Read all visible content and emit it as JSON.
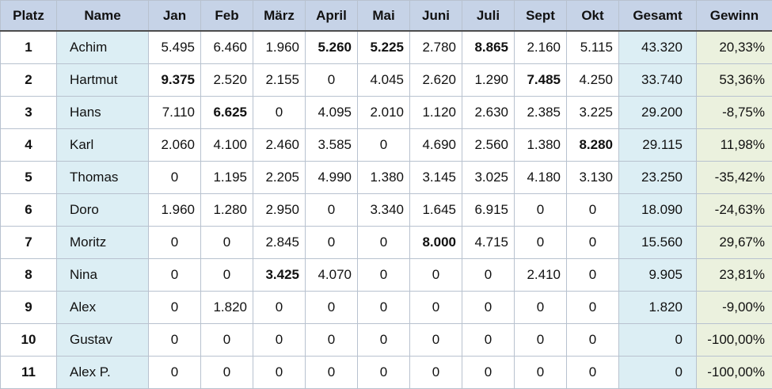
{
  "headers": [
    "Platz",
    "Name",
    "Jan",
    "Feb",
    "März",
    "April",
    "Mai",
    "Juni",
    "Juli",
    "Sept",
    "Okt",
    "Gesamt",
    "Gewinn"
  ],
  "rows": [
    {
      "platz": "1",
      "name": "Achim",
      "months": [
        "5.495",
        "6.460",
        "1.960",
        "5.260",
        "5.225",
        "2.780",
        "8.865",
        "2.160",
        "5.115"
      ],
      "bold": [
        3,
        4,
        6
      ],
      "gesamt": "43.320",
      "gewinn": "20,33%"
    },
    {
      "platz": "2",
      "name": "Hartmut",
      "months": [
        "9.375",
        "2.520",
        "2.155",
        "0",
        "4.045",
        "2.620",
        "1.290",
        "7.485",
        "4.250"
      ],
      "bold": [
        0,
        7
      ],
      "gesamt": "33.740",
      "gewinn": "53,36%"
    },
    {
      "platz": "3",
      "name": "Hans",
      "months": [
        "7.110",
        "6.625",
        "0",
        "4.095",
        "2.010",
        "1.120",
        "2.630",
        "2.385",
        "3.225"
      ],
      "bold": [
        1
      ],
      "gesamt": "29.200",
      "gewinn": "-8,75%"
    },
    {
      "platz": "4",
      "name": "Karl",
      "months": [
        "2.060",
        "4.100",
        "2.460",
        "3.585",
        "0",
        "4.690",
        "2.560",
        "1.380",
        "8.280"
      ],
      "bold": [
        8
      ],
      "gesamt": "29.115",
      "gewinn": "11,98%"
    },
    {
      "platz": "5",
      "name": "Thomas",
      "months": [
        "0",
        "1.195",
        "2.205",
        "4.990",
        "1.380",
        "3.145",
        "3.025",
        "4.180",
        "3.130"
      ],
      "bold": [],
      "gesamt": "23.250",
      "gewinn": "-35,42%"
    },
    {
      "platz": "6",
      "name": "Doro",
      "months": [
        "1.960",
        "1.280",
        "2.950",
        "0",
        "3.340",
        "1.645",
        "6.915",
        "0",
        "0"
      ],
      "bold": [],
      "gesamt": "18.090",
      "gewinn": "-24,63%"
    },
    {
      "platz": "7",
      "name": "Moritz",
      "months": [
        "0",
        "0",
        "2.845",
        "0",
        "0",
        "8.000",
        "4.715",
        "0",
        "0"
      ],
      "bold": [
        5
      ],
      "gesamt": "15.560",
      "gewinn": "29,67%"
    },
    {
      "platz": "8",
      "name": "Nina",
      "months": [
        "0",
        "0",
        "3.425",
        "4.070",
        "0",
        "0",
        "0",
        "2.410",
        "0"
      ],
      "bold": [
        2
      ],
      "gesamt": "9.905",
      "gewinn": "23,81%"
    },
    {
      "platz": "9",
      "name": "Alex",
      "months": [
        "0",
        "1.820",
        "0",
        "0",
        "0",
        "0",
        "0",
        "0",
        "0"
      ],
      "bold": [],
      "gesamt": "1.820",
      "gewinn": "-9,00%"
    },
    {
      "platz": "10",
      "name": "Gustav",
      "months": [
        "0",
        "0",
        "0",
        "0",
        "0",
        "0",
        "0",
        "0",
        "0"
      ],
      "bold": [],
      "gesamt": "0",
      "gewinn": "-100,00%"
    },
    {
      "platz": "11",
      "name": "Alex P.",
      "months": [
        "0",
        "0",
        "0",
        "0",
        "0",
        "0",
        "0",
        "0",
        "0"
      ],
      "bold": [],
      "gesamt": "0",
      "gewinn": "-100,00%"
    }
  ]
}
